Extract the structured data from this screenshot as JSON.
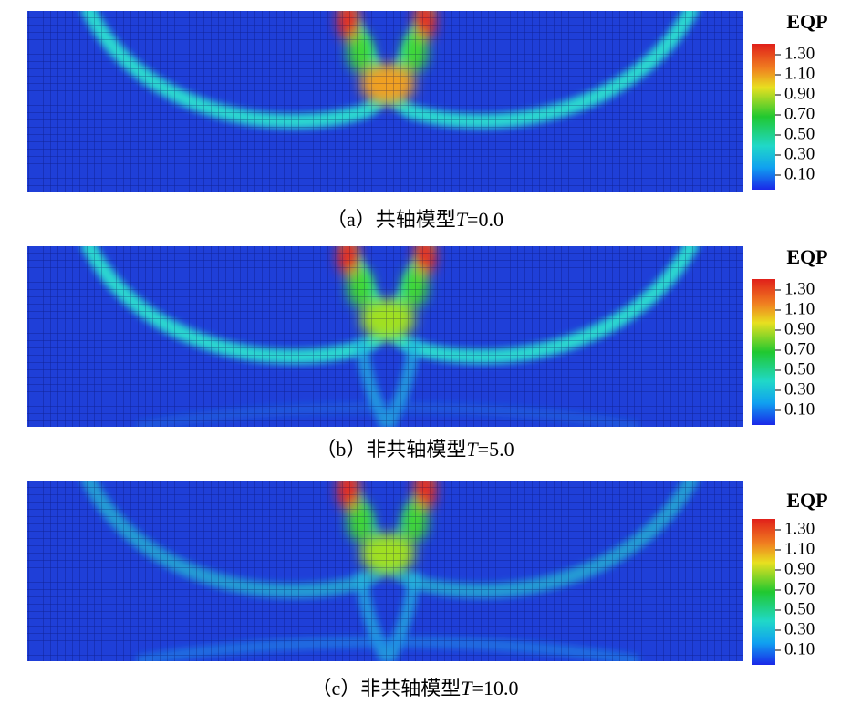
{
  "panels": [
    {
      "caption_prefix": "（a）共轴模型",
      "caption_var": "T",
      "caption_suffix": "=0.0",
      "colorbar_title": "EQP",
      "colorbar_ticks": [
        "1.30",
        "1.10",
        "0.90",
        "0.70",
        "0.50",
        "0.30",
        "0.10"
      ]
    },
    {
      "caption_prefix": "（b）非共轴模型",
      "caption_var": "T",
      "caption_suffix": "=5.0",
      "colorbar_title": "EQP",
      "colorbar_ticks": [
        "1.30",
        "1.10",
        "0.90",
        "0.70",
        "0.50",
        "0.30",
        "0.10"
      ]
    },
    {
      "caption_prefix": "（c）非共轴模型",
      "caption_var": "T",
      "caption_suffix": "=10.0",
      "colorbar_title": "EQP",
      "colorbar_ticks": [
        "1.30",
        "1.10",
        "0.90",
        "0.70",
        "0.50",
        "0.30",
        "0.10"
      ]
    }
  ]
}
